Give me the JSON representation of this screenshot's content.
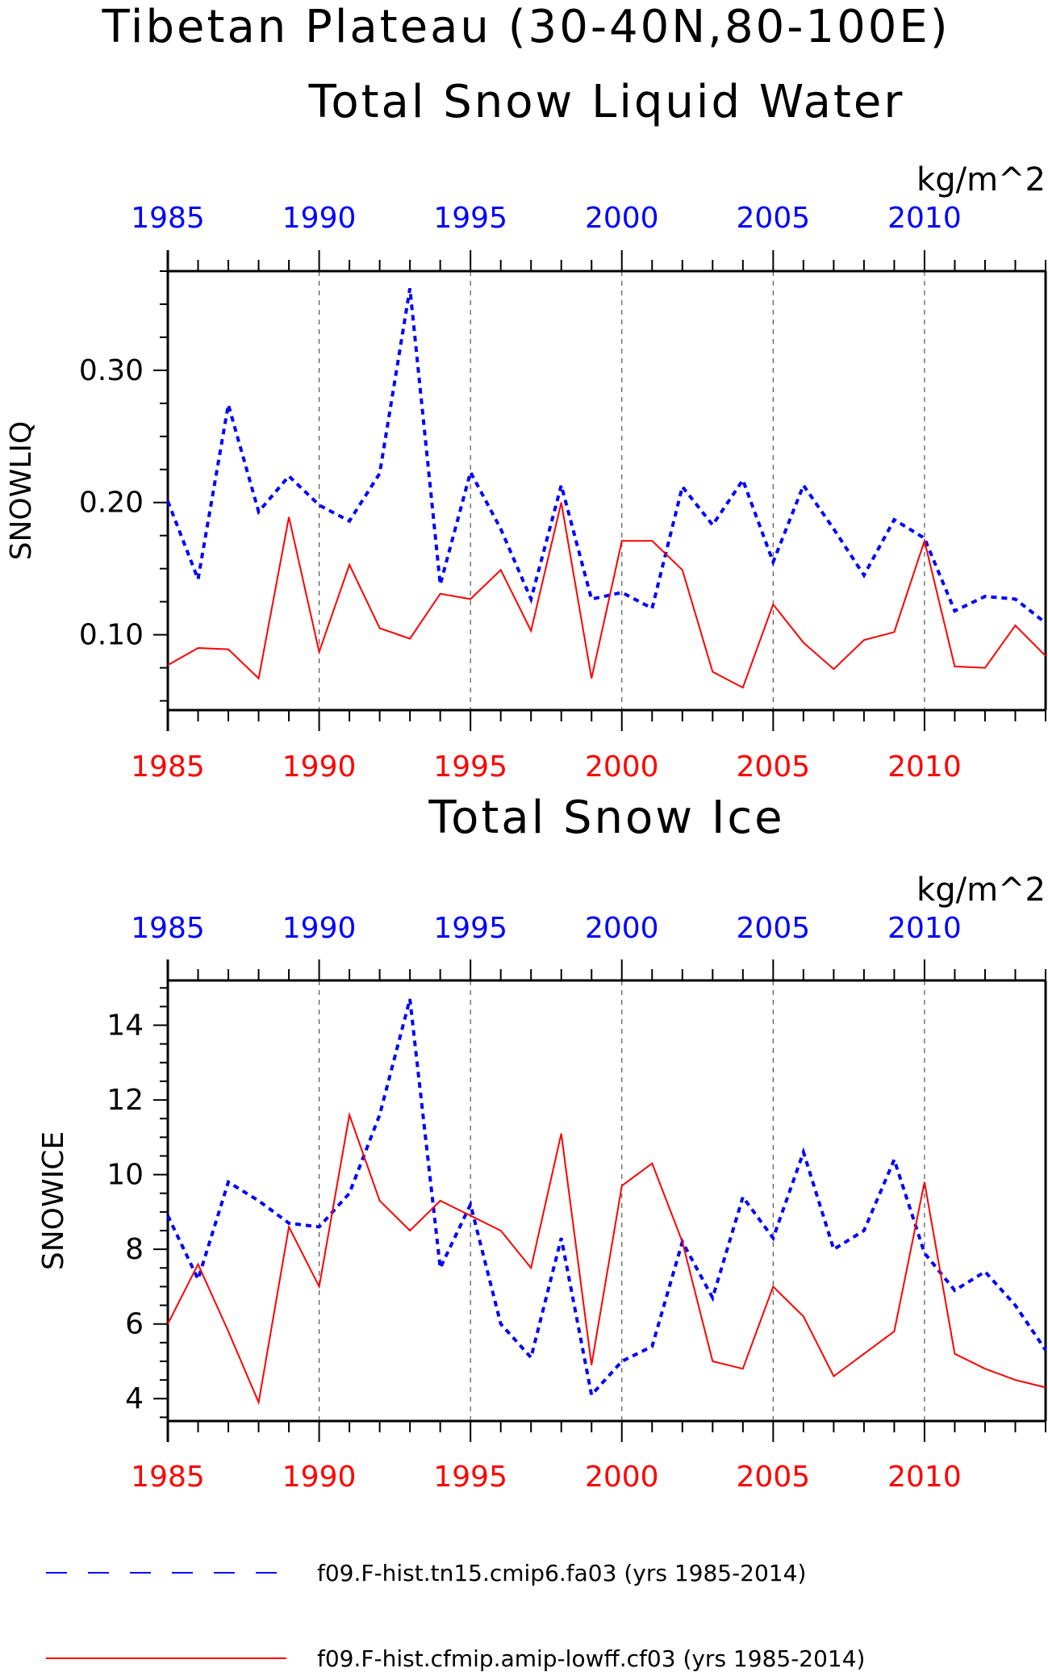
{
  "titles": {
    "main": "Tibetan Plateau (30-40N,80-100E)",
    "panel1": "Total Snow Liquid Water",
    "panel2": "Total Snow Ice"
  },
  "colors": {
    "series1": "#0000ff",
    "series2": "#ff0000",
    "axis": "#000000"
  },
  "legend": {
    "items": [
      {
        "label": "f09.F-hist.tn15.cmip6.fa03 (yrs 1985-2014)",
        "color": "#0000ff",
        "style": "dashed"
      },
      {
        "label": "f09.F-hist.cfmip.amip-lowff.cf03 (yrs 1985-2014)",
        "color": "#ff0000",
        "style": "solid"
      }
    ]
  },
  "chart_data": [
    {
      "type": "line",
      "title": "Total Snow Liquid Water",
      "ylabel": "SNOWLIQ",
      "units": "kg/m^2",
      "x": [
        1985,
        1986,
        1987,
        1988,
        1989,
        1990,
        1991,
        1992,
        1993,
        1994,
        1995,
        1996,
        1997,
        1998,
        1999,
        2000,
        2001,
        2002,
        2003,
        2004,
        2005,
        2006,
        2007,
        2008,
        2009,
        2010,
        2011,
        2012,
        2013,
        2014
      ],
      "xlim": [
        1985,
        2014
      ],
      "ylim": [
        0.043,
        0.375
      ],
      "yticks": [
        0.1,
        0.2,
        0.3
      ],
      "yticklabels": [
        "0.10",
        "0.20",
        "0.30"
      ],
      "xticks": [
        1985,
        1990,
        1995,
        2000,
        2005,
        2010
      ],
      "xticklabels": [
        "1985",
        "1990",
        "1995",
        "2000",
        "2005",
        "2010"
      ],
      "grid": "vertical dashed at labeled years",
      "series": [
        {
          "name": "f09.F-hist.tn15.cmip6.fa03 (yrs 1985-2014)",
          "color": "#0000ff",
          "style": "dashed",
          "values": [
            0.201,
            0.142,
            0.274,
            0.193,
            0.22,
            0.198,
            0.186,
            0.222,
            0.362,
            0.138,
            0.223,
            0.18,
            0.127,
            0.213,
            0.127,
            0.132,
            0.12,
            0.212,
            0.183,
            0.217,
            0.155,
            0.213,
            0.18,
            0.145,
            0.187,
            0.173,
            0.118,
            0.129,
            0.127,
            0.109
          ]
        },
        {
          "name": "f09.F-hist.cfmip.amip-lowff.cf03 (yrs 1985-2014)",
          "color": "#ff0000",
          "style": "solid",
          "values": [
            0.077,
            0.09,
            0.089,
            0.067,
            0.189,
            0.087,
            0.153,
            0.105,
            0.097,
            0.131,
            0.127,
            0.149,
            0.103,
            0.2,
            0.067,
            0.171,
            0.171,
            0.149,
            0.072,
            0.06,
            0.123,
            0.094,
            0.074,
            0.096,
            0.102,
            0.171,
            0.076,
            0.075,
            0.107,
            0.084
          ]
        }
      ]
    },
    {
      "type": "line",
      "title": "Total Snow Ice",
      "ylabel": "SNOWICE",
      "units": "kg/m^2",
      "x": [
        1985,
        1986,
        1987,
        1988,
        1989,
        1990,
        1991,
        1992,
        1993,
        1994,
        1995,
        1996,
        1997,
        1998,
        1999,
        2000,
        2001,
        2002,
        2003,
        2004,
        2005,
        2006,
        2007,
        2008,
        2009,
        2010,
        2011,
        2012,
        2013,
        2014
      ],
      "xlim": [
        1985,
        2014
      ],
      "ylim": [
        3.4,
        15.2
      ],
      "yticks": [
        4,
        6,
        8,
        10,
        12,
        14
      ],
      "yticklabels": [
        "4",
        "6",
        "8",
        "10",
        "12",
        "14"
      ],
      "xticks": [
        1985,
        1990,
        1995,
        2000,
        2005,
        2010
      ],
      "xticklabels": [
        "1985",
        "1990",
        "1995",
        "2000",
        "2005",
        "2010"
      ],
      "grid": "vertical dashed at labeled years",
      "series": [
        {
          "name": "f09.F-hist.tn15.cmip6.fa03 (yrs 1985-2014)",
          "color": "#0000ff",
          "style": "dashed",
          "values": [
            8.9,
            7.2,
            9.8,
            9.3,
            8.7,
            8.6,
            9.5,
            11.6,
            14.7,
            7.5,
            9.2,
            6.0,
            5.1,
            8.3,
            4.1,
            5.0,
            5.4,
            8.2,
            6.7,
            9.4,
            8.3,
            10.6,
            8.0,
            8.5,
            10.4,
            7.9,
            6.9,
            7.4,
            6.5,
            5.3
          ]
        },
        {
          "name": "f09.F-hist.cfmip.amip-lowff.cf03 (yrs 1985-2014)",
          "color": "#ff0000",
          "style": "solid",
          "values": [
            6.0,
            7.6,
            5.8,
            3.9,
            8.6,
            7.0,
            11.6,
            9.3,
            8.5,
            9.3,
            8.9,
            8.5,
            7.5,
            11.1,
            4.9,
            9.7,
            10.3,
            8.2,
            5.0,
            4.8,
            7.0,
            6.2,
            4.6,
            5.2,
            5.8,
            9.8,
            5.2,
            4.8,
            4.5,
            4.3
          ]
        }
      ]
    }
  ]
}
